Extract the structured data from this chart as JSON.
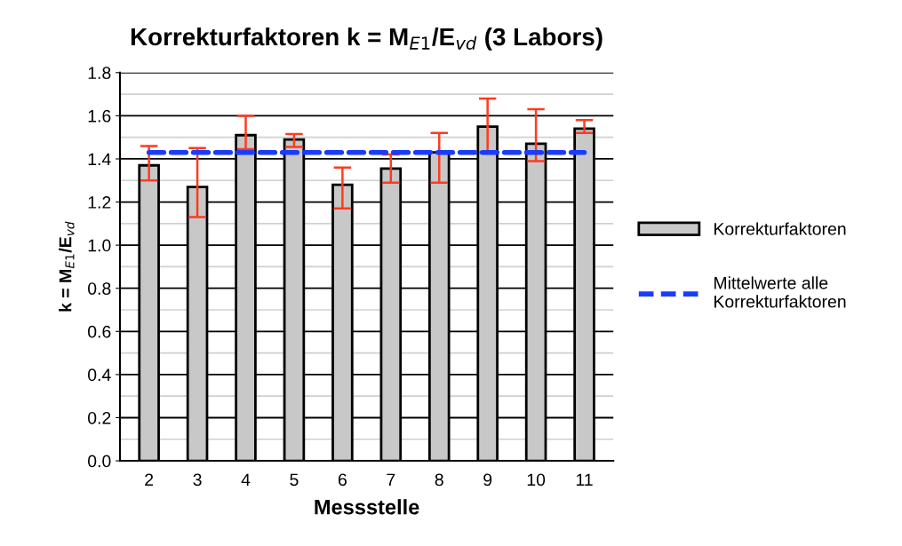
{
  "chart_data": {
    "type": "bar",
    "title": "Korrekturfaktoren k = M$_{E1}$/E$_{vd}$ (3 Labors)",
    "xlabel": "Messstelle",
    "ylabel": "k = M$_{E1}$/E$_{vd}$",
    "categories": [
      "2",
      "3",
      "4",
      "5",
      "6",
      "7",
      "8",
      "9",
      "10",
      "11"
    ],
    "series": [
      {
        "name": "Korrekturfaktoren",
        "color": "#c8c8c8",
        "values": [
          1.37,
          1.27,
          1.51,
          1.49,
          1.28,
          1.355,
          1.43,
          1.55,
          1.47,
          1.54
        ],
        "errors": [
          [
            1.3,
            1.46
          ],
          [
            1.13,
            1.45
          ],
          [
            1.445,
            1.6
          ],
          [
            1.455,
            1.515
          ],
          [
            1.17,
            1.36
          ],
          [
            1.29,
            1.42
          ],
          [
            1.29,
            1.52
          ],
          [
            1.43,
            1.68
          ],
          [
            1.39,
            1.63
          ],
          [
            1.52,
            1.58
          ]
        ]
      },
      {
        "name": "Mittelwerte alle Korrekturfaktoren",
        "type": "line",
        "color": "#1a3cff",
        "line_style": "dashed",
        "values": [
          1.43,
          1.43,
          1.43,
          1.43,
          1.43,
          1.43,
          1.43,
          1.43,
          1.43,
          1.43
        ]
      }
    ],
    "ylim": [
      0,
      1.8
    ],
    "yticks": [
      {
        "value": 0,
        "label": "0.0"
      },
      {
        "value": 0.1,
        "label": null
      },
      {
        "value": 0.2,
        "label": "0.2"
      },
      {
        "value": 0.3,
        "label": null
      },
      {
        "value": 0.4,
        "label": "0.4"
      },
      {
        "value": 0.5,
        "label": null
      },
      {
        "value": 0.6,
        "label": "0.6"
      },
      {
        "value": 0.7,
        "label": null
      },
      {
        "value": 0.8,
        "label": "0.8"
      },
      {
        "value": 0.9,
        "label": null
      },
      {
        "value": 1.0,
        "label": "1.0"
      },
      {
        "value": 1.1,
        "label": null
      },
      {
        "value": 1.2,
        "label": "1.2"
      },
      {
        "value": 1.3,
        "label": null
      },
      {
        "value": 1.4,
        "label": "1.4"
      },
      {
        "value": 1.5,
        "label": null
      },
      {
        "value": 1.6,
        "label": "1.6"
      },
      {
        "value": 1.7,
        "label": null
      },
      {
        "value": 1.8,
        "label": "1.8"
      }
    ],
    "grid": "y",
    "legend": "right",
    "marker": "none"
  }
}
